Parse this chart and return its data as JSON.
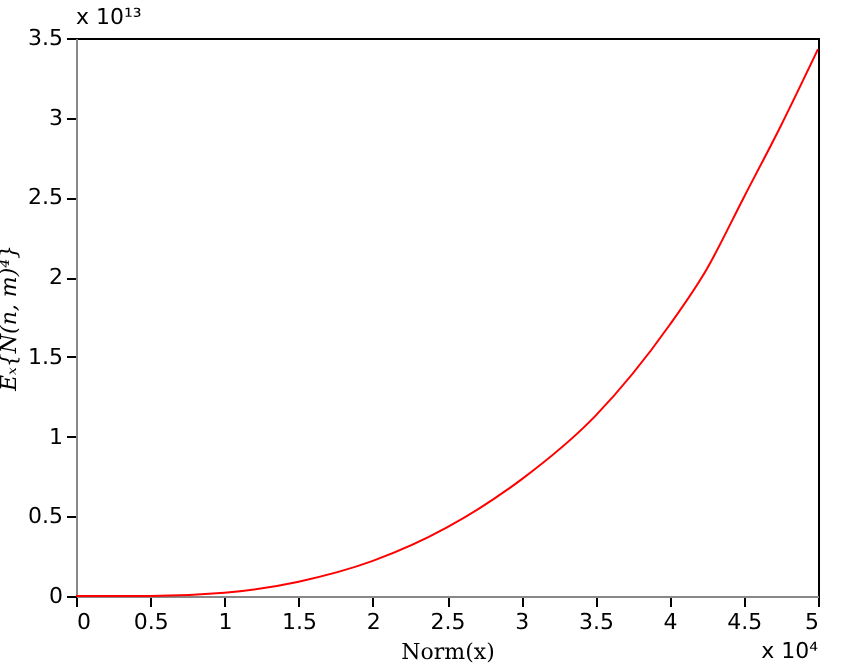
{
  "chart_data": {
    "type": "line",
    "xlabel": "Norm(x)",
    "ylabel": "Eₓ{N(n, m)⁴}",
    "x": [
      0,
      0.5,
      1,
      1.5,
      2,
      2.5,
      3,
      3.5,
      4,
      4.25,
      4.5,
      4.75,
      5
    ],
    "series": [
      {
        "color": "#ff0000",
        "values": [
          0,
          0,
          0.02,
          0.09,
          0.22,
          0.43,
          0.73,
          1.13,
          1.7,
          2.05,
          2.5,
          2.95,
          3.43
        ]
      }
    ],
    "xlim": [
      0,
      5
    ],
    "ylim": [
      0,
      3.5
    ],
    "xticks": [
      0,
      0.5,
      1,
      1.5,
      2,
      2.5,
      3,
      3.5,
      4,
      4.5,
      5
    ],
    "yticks": [
      0,
      0.5,
      1,
      1.5,
      2,
      2.5,
      3,
      3.5
    ],
    "annotations": [
      "x 10¹³",
      "x 10⁴"
    ],
    "grid": false,
    "marker": "none",
    "line_style": "solid"
  }
}
